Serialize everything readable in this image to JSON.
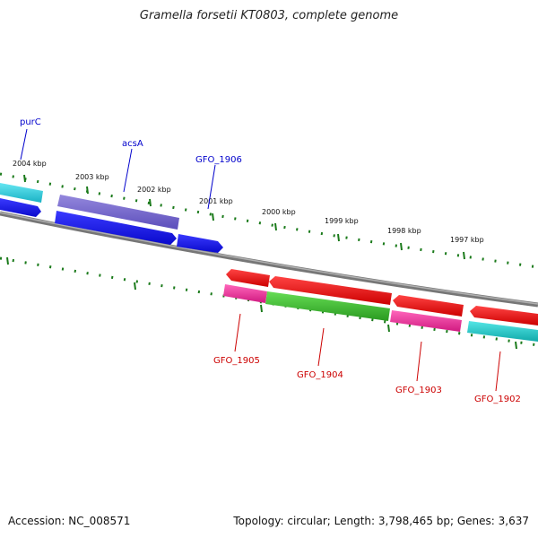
{
  "title": "Gramella forsetii KT0803, complete genome",
  "footer": {
    "accession": "Accession: NC_008571",
    "topology": "Topology: circular; Length: 3,798,465 bp; Genes: 3,637"
  },
  "ticks": [
    "2004 kbp",
    "2003 kbp",
    "2002 kbp",
    "2001 kbp",
    "2000 kbp",
    "1999 kbp",
    "1998 kbp",
    "1997 kbp"
  ],
  "genes_top": [
    {
      "label": "purC",
      "color": "#0000cc"
    },
    {
      "label": "acsA",
      "color": "#0000cc"
    },
    {
      "label": "GFO_1906",
      "color": "#0000cc"
    }
  ],
  "genes_bottom": [
    {
      "label": "GFO_1905",
      "color": "#cc0000"
    },
    {
      "label": "GFO_1904",
      "color": "#cc0000"
    },
    {
      "label": "GFO_1903",
      "color": "#cc0000"
    },
    {
      "label": "GFO_1902",
      "color": "#cc0000"
    }
  ],
  "colors": {
    "backbone": "#808080",
    "tick": "#1a7a1a",
    "cyan": "#33ccdd",
    "blue": "#1a1aee",
    "purple": "#7766cc",
    "red": "#ee1111",
    "magenta": "#ee3399",
    "green": "#44bb33",
    "teal": "#22cccc"
  }
}
